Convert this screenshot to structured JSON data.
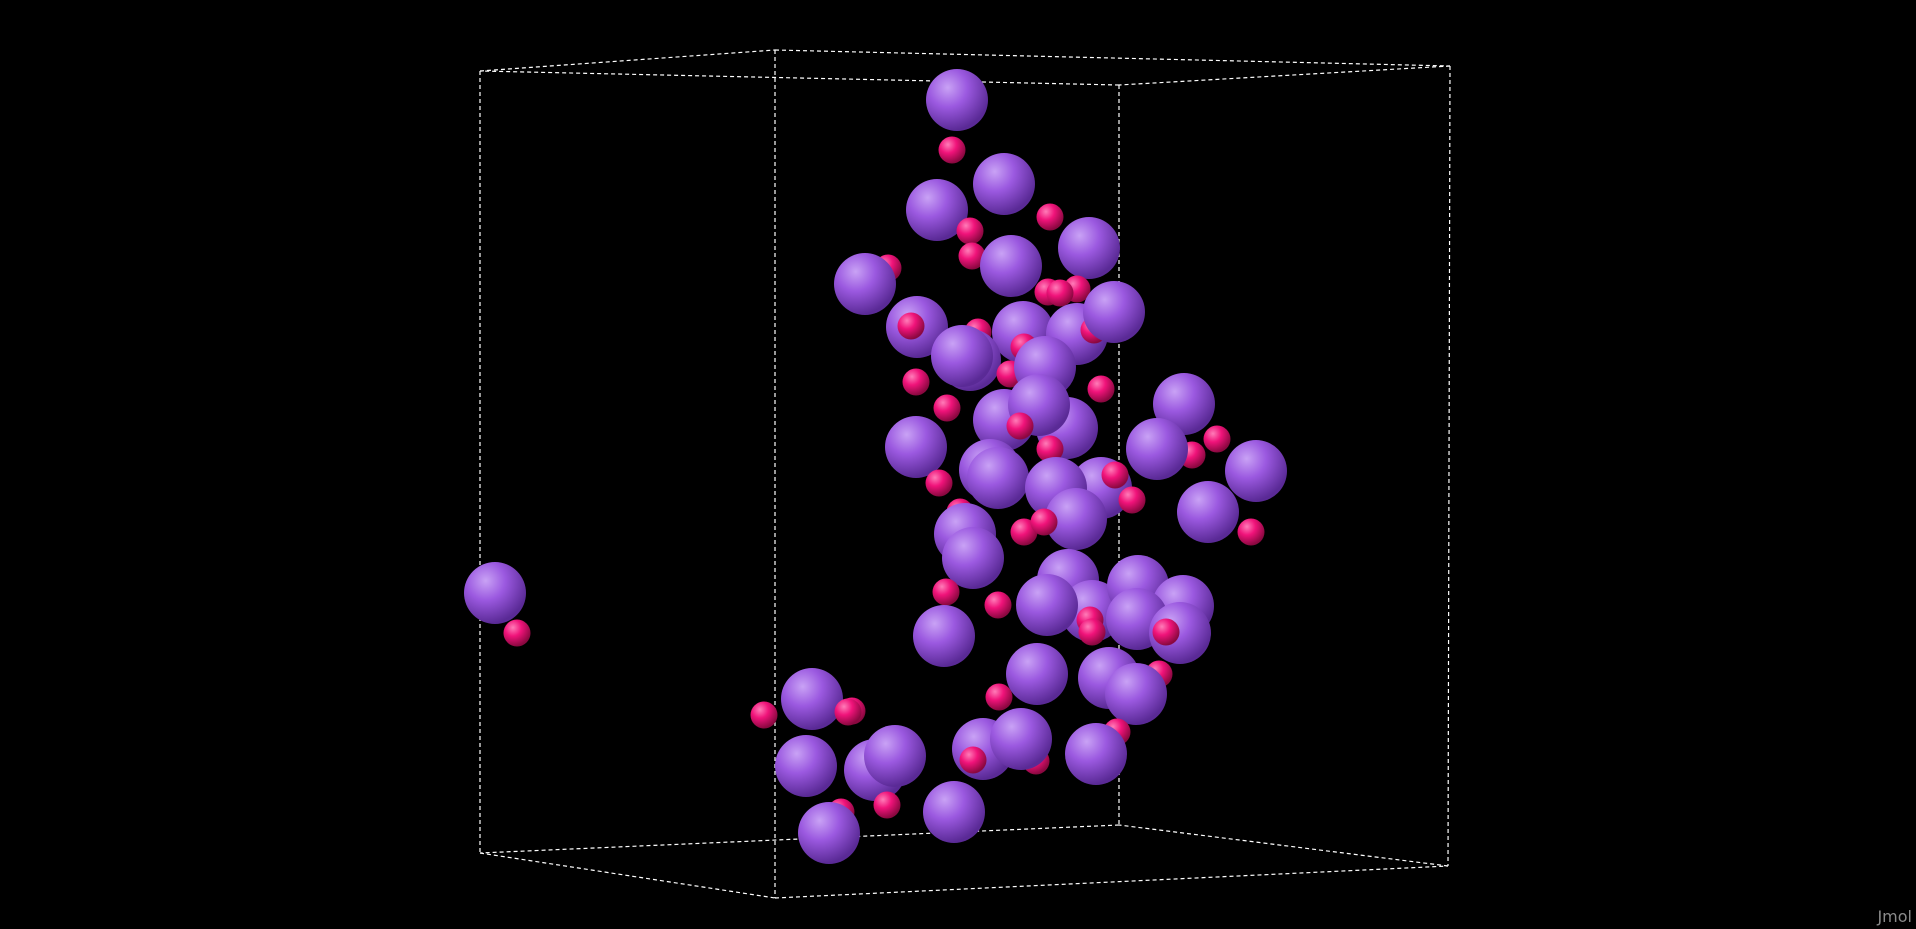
{
  "viewer": {
    "background_color": "#000000",
    "watermark": "Jmol"
  },
  "unit_cell": {
    "style": "dashed",
    "color": "#ffffff"
  },
  "atoms": {
    "large": {
      "name": "large-atom",
      "color": "#9b59e0",
      "highlight": "#c9a2f5",
      "shade": "#5a2a96"
    },
    "small": {
      "name": "small-atom",
      "color": "#f0137a",
      "highlight": "#ff7cb8",
      "shade": "#8a0840"
    }
  }
}
